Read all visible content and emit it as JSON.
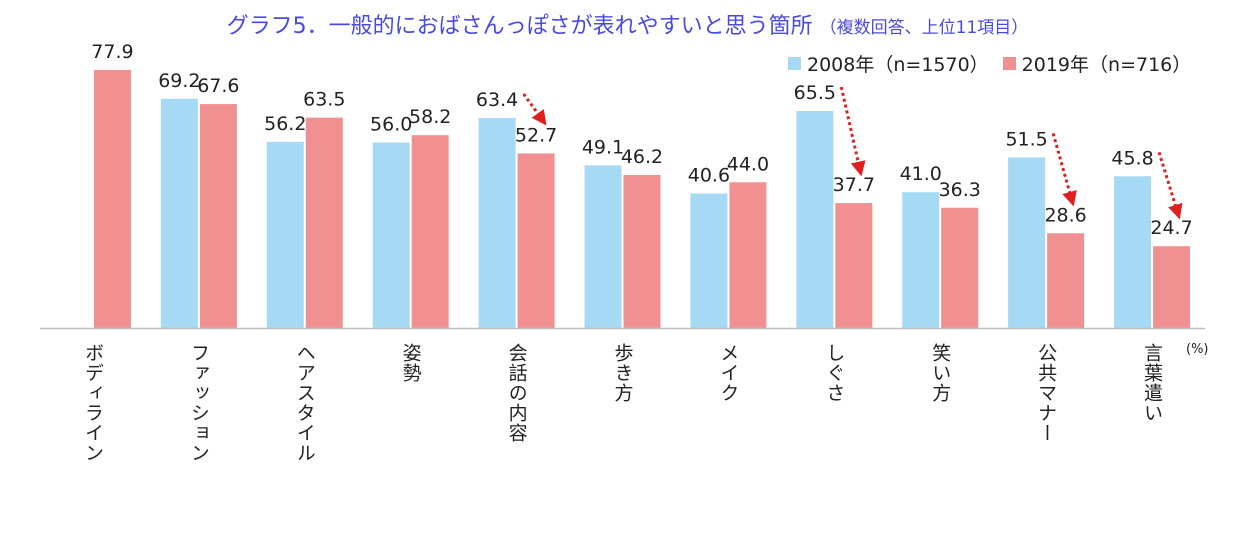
{
  "title": {
    "main": "グラフ5．一般的におばさんっぽさが表れやすいと思う箇所",
    "sub": "（複数回答、上位11項目）"
  },
  "unit": "(%)",
  "colors": {
    "series_2008": "#a6d9f3",
    "series_2019": "#f09090",
    "arrow": "#e02020",
    "axis": "#bfbfbf"
  },
  "chart_data": {
    "type": "bar",
    "categories": [
      "ボディライン",
      "ファッション",
      "ヘアスタイル",
      "姿勢",
      "会話の内容",
      "歩き方",
      "メイク",
      "しぐさ",
      "笑い方",
      "公共マナー",
      "言葉遣い"
    ],
    "series": [
      {
        "name": "2008年（n=1570）",
        "values": [
          null,
          69.2,
          56.2,
          56.0,
          63.4,
          49.1,
          40.6,
          65.5,
          41.0,
          51.5,
          45.8
        ]
      },
      {
        "name": "2019年（n=716）",
        "values": [
          77.9,
          67.6,
          63.5,
          58.2,
          52.7,
          46.2,
          44.0,
          37.7,
          36.3,
          28.6,
          24.7
        ]
      }
    ],
    "ylim": [
      0,
      80
    ],
    "legend": "top-right",
    "grid": false,
    "decline_arrows": [
      "会話の内容",
      "しぐさ",
      "公共マナー",
      "言葉遣い"
    ]
  }
}
